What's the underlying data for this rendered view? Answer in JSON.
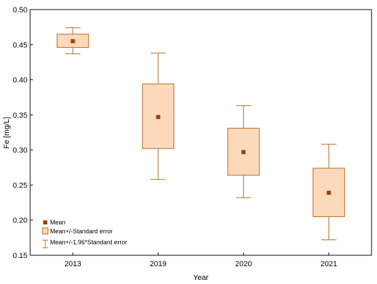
{
  "chart_data": {
    "type": "box",
    "title": "",
    "xlabel": "Year",
    "ylabel": "Fe [mg/L]",
    "ylim": [
      0.15,
      0.5
    ],
    "yticks": [
      "0.15",
      "0.20",
      "0.25",
      "0.30",
      "0.35",
      "0.40",
      "0.45",
      "0.50"
    ],
    "categories": [
      "2013",
      "2019",
      "2020",
      "2021"
    ],
    "mean": [
      0.455,
      0.347,
      0.297,
      0.239
    ],
    "se_low": [
      0.446,
      0.302,
      0.264,
      0.205
    ],
    "se_high": [
      0.465,
      0.394,
      0.331,
      0.274
    ],
    "ci_low": [
      0.437,
      0.258,
      0.232,
      0.172
    ],
    "ci_high": [
      0.474,
      0.438,
      0.363,
      0.308
    ],
    "legend": {
      "placement": "bottom-left",
      "items": [
        "Mean",
        "Mean+/-Standard error",
        "Mean+/-1.96*Standard error"
      ]
    },
    "colors": {
      "box_fill": "#fdd9bb",
      "box_stroke": "#b8671c",
      "mean_marker": "#a0400a",
      "frame": "#000000"
    },
    "grid": false
  }
}
